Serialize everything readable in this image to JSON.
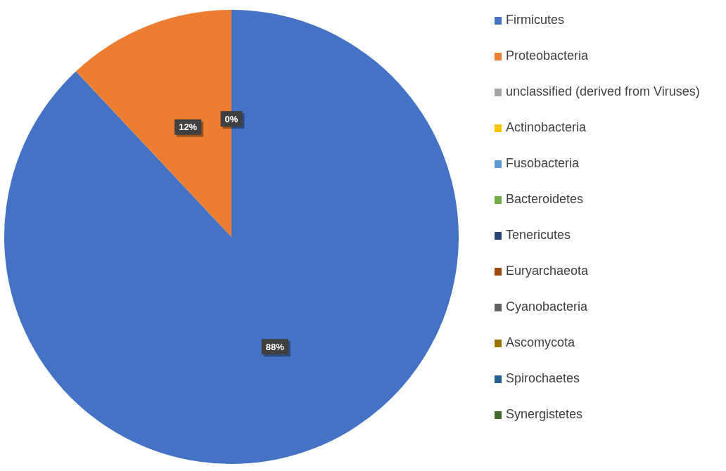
{
  "chart_data": {
    "type": "pie",
    "categories": [
      "Firmicutes",
      "Proteobacteria",
      "unclassified (derived from Viruses)",
      "Actinobacteria",
      "Fusobacteria",
      "Bacteroidetes",
      "Tenericutes",
      "Euryarchaeota",
      "Cyanobacteria",
      "Ascomycota",
      "Spirochaetes",
      "Synergistetes"
    ],
    "values": [
      88,
      12,
      0,
      0,
      0,
      0,
      0,
      0,
      0,
      0,
      0,
      0
    ],
    "colors": [
      "#4472c4",
      "#ed7d31",
      "#a5a5a5",
      "#ffc000",
      "#5b9bd5",
      "#70ad47",
      "#264478",
      "#9e480e",
      "#636363",
      "#997300",
      "#255e91",
      "#43682b"
    ],
    "value_labels": [
      "88%",
      "12%",
      "0%",
      null,
      null,
      null,
      null,
      null,
      null,
      null,
      null,
      null
    ],
    "legend": "right"
  }
}
